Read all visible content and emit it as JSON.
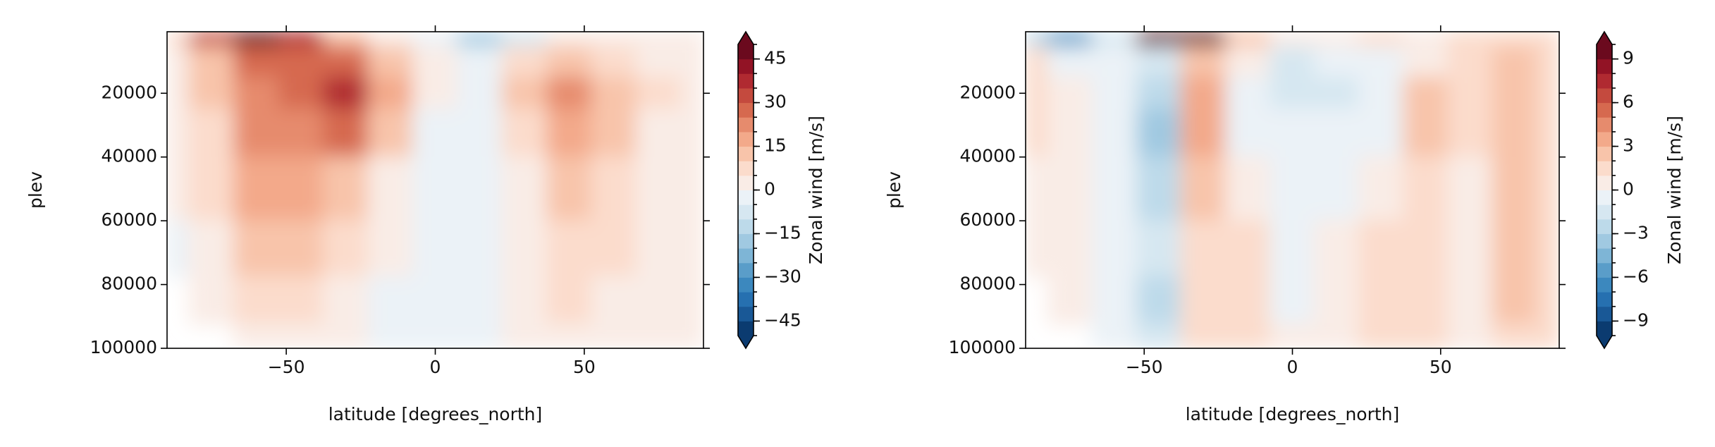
{
  "chart_data": [
    {
      "type": "contour",
      "xlabel": "latitude [degrees_north]",
      "ylabel": "plev",
      "cbar_label": "Zonal wind [m/s]",
      "x": [
        -90,
        -75,
        -60,
        -45,
        -30,
        -15,
        0,
        15,
        30,
        45,
        60,
        75,
        90
      ],
      "y": [
        1000,
        10000,
        20000,
        30000,
        50000,
        70000,
        85000,
        100000
      ],
      "z": [
        [
          5,
          30,
          50,
          35,
          12,
          3,
          -5,
          -20,
          -10,
          0,
          2,
          3,
          2
        ],
        [
          3,
          12,
          25,
          28,
          28,
          12,
          2,
          -5,
          5,
          12,
          8,
          4,
          2
        ],
        [
          2,
          10,
          22,
          25,
          38,
          15,
          0,
          -2,
          10,
          22,
          12,
          5,
          2
        ],
        [
          2,
          8,
          20,
          22,
          28,
          12,
          -2,
          -3,
          8,
          18,
          10,
          4,
          2
        ],
        [
          1,
          6,
          18,
          15,
          12,
          4,
          -2,
          -3,
          4,
          12,
          8,
          3,
          1
        ],
        [
          -2,
          3,
          12,
          10,
          6,
          0,
          -4,
          -3,
          2,
          8,
          5,
          2,
          1
        ],
        [
          null,
          2,
          8,
          6,
          2,
          -2,
          -4,
          -2,
          1,
          5,
          3,
          1,
          1
        ],
        [
          null,
          null,
          4,
          3,
          1,
          -3,
          -3,
          -2,
          0,
          3,
          2,
          1,
          1
        ]
      ],
      "xlim": [
        -90,
        90
      ],
      "ylim": [
        100000,
        700
      ],
      "xticks": [
        {
          "value": -50,
          "label": "−50"
        },
        0,
        50
      ],
      "yticks": [
        20000,
        40000,
        60000,
        80000,
        100000
      ],
      "levels": [
        -50,
        -45,
        -40,
        -35,
        -30,
        -25,
        -20,
        -15,
        -10,
        -5,
        0,
        5,
        10,
        15,
        20,
        25,
        30,
        35,
        40,
        45,
        50
      ],
      "cbar_ticks": [
        {
          "value": -45,
          "label": "−45"
        },
        {
          "value": -30,
          "label": "−30"
        },
        {
          "value": -15,
          "label": "−15"
        },
        0,
        15,
        30,
        45
      ],
      "extend": "both",
      "colors": [
        "#0b3b70",
        "#195896",
        "#2670b0",
        "#3c88be",
        "#5a9dc9",
        "#7eb5d6",
        "#a0c9e1",
        "#bddaea",
        "#d6e7f1",
        "#ebf2f7",
        "#f9ece6",
        "#fbdccc",
        "#f8c4aa",
        "#f3a98a",
        "#e68b6d",
        "#d6694f",
        "#c44a3e",
        "#b02a31",
        "#921325",
        "#6b0a1e"
      ]
    },
    {
      "type": "contour",
      "xlabel": "latitude [degrees_north]",
      "ylabel": "plev",
      "cbar_label": "Zonal wind [m/s]",
      "x": [
        -90,
        -75,
        -60,
        -45,
        -30,
        -15,
        0,
        15,
        30,
        45,
        60,
        75,
        90
      ],
      "y": [
        1000,
        10000,
        20000,
        30000,
        50000,
        70000,
        85000,
        100000
      ],
      "z": [
        [
          -3,
          -6,
          -2,
          10,
          10,
          2,
          0,
          0,
          1,
          0,
          1,
          1,
          1
        ],
        [
          1,
          -1,
          -1,
          -2,
          2,
          0,
          -2,
          -1,
          -1,
          0,
          1,
          2,
          1
        ],
        [
          1,
          0,
          -1,
          -3,
          3,
          -1,
          -2,
          -2,
          -1,
          2,
          1,
          2,
          1
        ],
        [
          1,
          0,
          -1,
          -4,
          3,
          -1,
          -1,
          -1,
          -1,
          2,
          1,
          2,
          1
        ],
        [
          0,
          0,
          -1,
          -3,
          2,
          0,
          -1,
          -1,
          0,
          1,
          0,
          2,
          1
        ],
        [
          0,
          0,
          -1,
          -2,
          1,
          1,
          -1,
          0,
          1,
          1,
          0,
          2,
          1
        ],
        [
          null,
          0,
          -1,
          -3,
          1,
          1,
          -1,
          0,
          1,
          1,
          0,
          2,
          1
        ],
        [
          null,
          null,
          -1,
          -2,
          1,
          1,
          0,
          0,
          1,
          1,
          0,
          1,
          1
        ]
      ],
      "xlim": [
        -90,
        90
      ],
      "ylim": [
        100000,
        700
      ],
      "xticks": [
        {
          "value": -50,
          "label": "−50"
        },
        0,
        50
      ],
      "yticks": [
        20000,
        40000,
        60000,
        80000,
        100000
      ],
      "levels": [
        -10,
        -9,
        -8,
        -7,
        -6,
        -5,
        -4,
        -3,
        -2,
        -1,
        0,
        1,
        2,
        3,
        4,
        5,
        6,
        7,
        8,
        9,
        10
      ],
      "cbar_ticks": [
        {
          "value": -9,
          "label": "−9"
        },
        {
          "value": -6,
          "label": "−6"
        },
        {
          "value": -3,
          "label": "−3"
        },
        0,
        3,
        6,
        9
      ],
      "extend": "both",
      "colors": [
        "#0b3b70",
        "#195896",
        "#2670b0",
        "#3c88be",
        "#5a9dc9",
        "#7eb5d6",
        "#a0c9e1",
        "#bddaea",
        "#d6e7f1",
        "#ebf2f7",
        "#f9ece6",
        "#fbdccc",
        "#f8c4aa",
        "#f3a98a",
        "#e68b6d",
        "#d6694f",
        "#c44a3e",
        "#b02a31",
        "#921325",
        "#6b0a1e"
      ]
    }
  ]
}
